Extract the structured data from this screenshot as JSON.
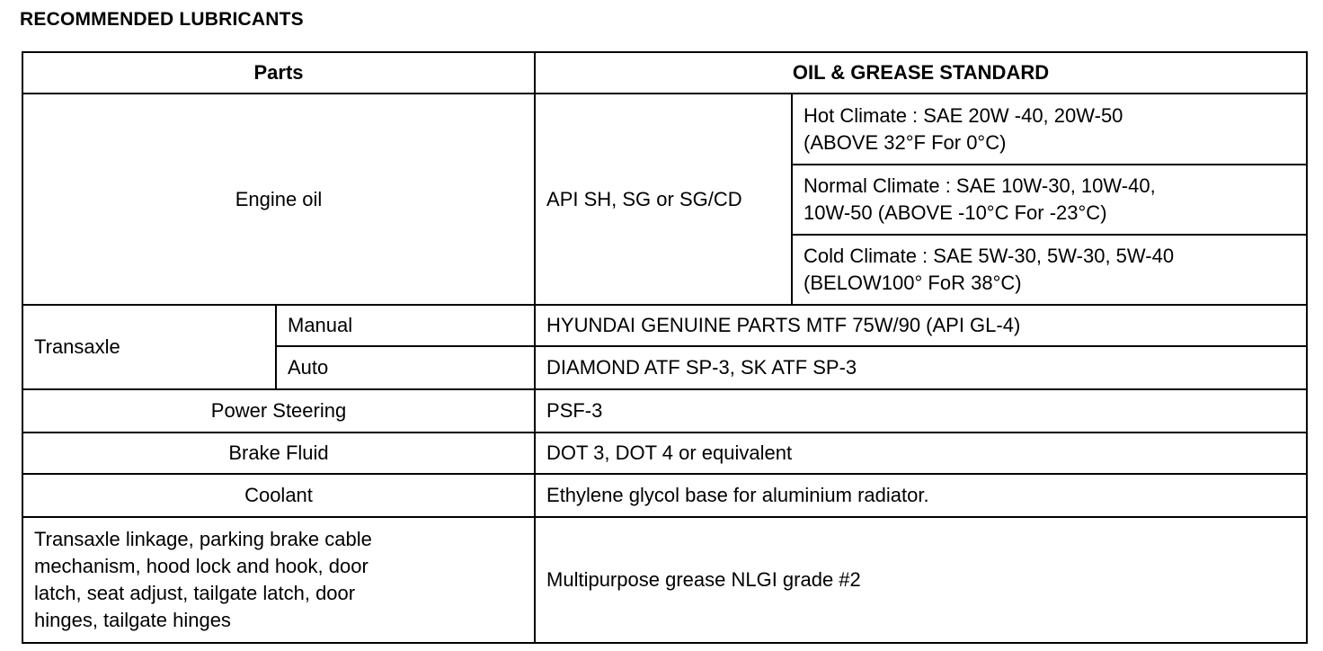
{
  "title": "RECOMMENDED LUBRICANTS",
  "headers": {
    "parts": "Parts",
    "standard": "OIL & GREASE STANDARD"
  },
  "engine_oil": {
    "part": "Engine oil",
    "api": "API SH, SG or SG/CD",
    "climates": [
      {
        "line1": "Hot Climate :  SAE 20W -40, 20W-50",
        "line2": "(ABOVE 32°F For 0°C)"
      },
      {
        "line1": "Normal Climate :  SAE 10W-30, 10W-40,",
        "line2": "10W-50 (ABOVE -10°C For -23°C)"
      },
      {
        "line1": "Cold Climate :  SAE 5W-30, 5W-30, 5W-40",
        "line2": "(BELOW100° FoR 38°C)"
      }
    ]
  },
  "transaxle": {
    "part": "Transaxle",
    "manual": {
      "label": "Manual",
      "standard": "HYUNDAI GENUINE PARTS MTF 75W/90 (API GL-4)"
    },
    "auto": {
      "label": "Auto",
      "standard": "DIAMOND ATF SP-3, SK ATF SP-3"
    }
  },
  "rows": [
    {
      "part": "Power Steering",
      "standard": "PSF-3"
    },
    {
      "part": "Brake Fluid",
      "standard": "DOT 3, DOT 4 or equivalent"
    },
    {
      "part": "Coolant",
      "standard": "Ethylene glycol base for aluminium radiator."
    }
  ],
  "grease": {
    "part_lines": [
      "Transaxle linkage, parking brake cable",
      "mechanism, hood lock and hook, door",
      "latch, seat adjust, tailgate latch, door",
      "hinges, tailgate hinges"
    ],
    "standard": "Multipurpose grease NLGI grade #2"
  }
}
